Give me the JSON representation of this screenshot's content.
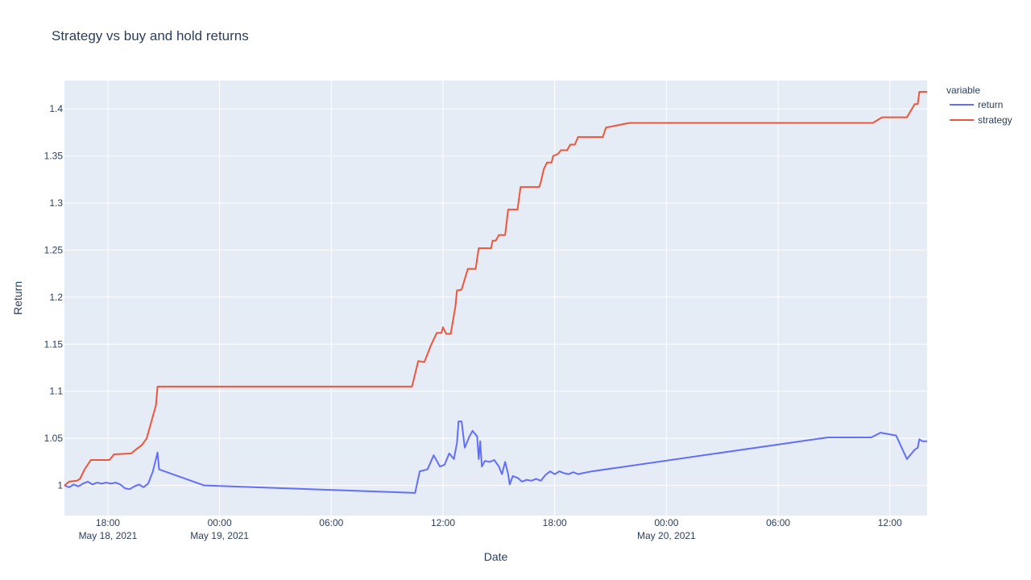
{
  "chart_data": {
    "type": "line",
    "title": "Strategy vs buy and hold returns",
    "xlabel": "Date",
    "ylabel": "Return",
    "xlim": [
      "2021-05-18T15:40:00",
      "2021-05-20T14:00:00"
    ],
    "ylim": [
      0.968,
      1.43
    ],
    "grid": true,
    "legend": {
      "title": "variable",
      "placement": "top-right"
    },
    "x_ticks": [
      {
        "value": "2021-05-18T18:00:00",
        "label": "18:00",
        "sublabel": "May 18, 2021"
      },
      {
        "value": "2021-05-19T00:00:00",
        "label": "00:00",
        "sublabel": "May 19, 2021"
      },
      {
        "value": "2021-05-19T06:00:00",
        "label": "06:00",
        "sublabel": ""
      },
      {
        "value": "2021-05-19T12:00:00",
        "label": "12:00",
        "sublabel": ""
      },
      {
        "value": "2021-05-19T18:00:00",
        "label": "18:00",
        "sublabel": ""
      },
      {
        "value": "2021-05-20T00:00:00",
        "label": "00:00",
        "sublabel": "May 20, 2021"
      },
      {
        "value": "2021-05-20T06:00:00",
        "label": "06:00",
        "sublabel": ""
      },
      {
        "value": "2021-05-20T12:00:00",
        "label": "12:00",
        "sublabel": ""
      }
    ],
    "y_ticks": [
      {
        "value": 1.0,
        "label": "1"
      },
      {
        "value": 1.05,
        "label": "1.05"
      },
      {
        "value": 1.1,
        "label": "1.1"
      },
      {
        "value": 1.15,
        "label": "1.15"
      },
      {
        "value": 1.2,
        "label": "1.2"
      },
      {
        "value": 1.25,
        "label": "1.25"
      },
      {
        "value": 1.3,
        "label": "1.3"
      },
      {
        "value": 1.35,
        "label": "1.35"
      },
      {
        "value": 1.4,
        "label": "1.4"
      }
    ],
    "series": [
      {
        "name": "return",
        "color": "#636efa",
        "points": [
          [
            "2021-05-18T15:40:00",
            1.0
          ],
          [
            "2021-05-18T15:55:00",
            0.998
          ],
          [
            "2021-05-18T16:10:00",
            1.001
          ],
          [
            "2021-05-18T16:25:00",
            0.999
          ],
          [
            "2021-05-18T16:40:00",
            1.002
          ],
          [
            "2021-05-18T16:55:00",
            1.004
          ],
          [
            "2021-05-18T17:10:00",
            1.001
          ],
          [
            "2021-05-18T17:25:00",
            1.003
          ],
          [
            "2021-05-18T17:40:00",
            1.002
          ],
          [
            "2021-05-18T17:55:00",
            1.003
          ],
          [
            "2021-05-18T18:10:00",
            1.002
          ],
          [
            "2021-05-18T18:25:00",
            1.003
          ],
          [
            "2021-05-18T18:40:00",
            1.001
          ],
          [
            "2021-05-18T18:55:00",
            0.997
          ],
          [
            "2021-05-18T19:10:00",
            0.996
          ],
          [
            "2021-05-18T19:25:00",
            0.999
          ],
          [
            "2021-05-18T19:40:00",
            1.001
          ],
          [
            "2021-05-18T19:55:00",
            0.998
          ],
          [
            "2021-05-18T20:10:00",
            1.002
          ],
          [
            "2021-05-18T20:25:00",
            1.015
          ],
          [
            "2021-05-18T20:40:00",
            1.035
          ],
          [
            "2021-05-18T20:45:00",
            1.017
          ],
          [
            "2021-05-18T23:10:00",
            1.0
          ],
          [
            "2021-05-19T10:30:00",
            0.992
          ],
          [
            "2021-05-19T10:45:00",
            1.015
          ],
          [
            "2021-05-19T11:10:00",
            1.017
          ],
          [
            "2021-05-19T11:30:00",
            1.032
          ],
          [
            "2021-05-19T11:50:00",
            1.02
          ],
          [
            "2021-05-19T12:05:00",
            1.022
          ],
          [
            "2021-05-19T12:20:00",
            1.034
          ],
          [
            "2021-05-19T12:35:00",
            1.028
          ],
          [
            "2021-05-19T12:45:00",
            1.045
          ],
          [
            "2021-05-19T12:50:00",
            1.068
          ],
          [
            "2021-05-19T13:00:00",
            1.068
          ],
          [
            "2021-05-19T13:10:00",
            1.04
          ],
          [
            "2021-05-19T13:25:00",
            1.052
          ],
          [
            "2021-05-19T13:35:00",
            1.058
          ],
          [
            "2021-05-19T13:50:00",
            1.052
          ],
          [
            "2021-05-19T13:55:00",
            1.028
          ],
          [
            "2021-05-19T14:00:00",
            1.047
          ],
          [
            "2021-05-19T14:05:00",
            1.02
          ],
          [
            "2021-05-19T14:15:00",
            1.026
          ],
          [
            "2021-05-19T14:30:00",
            1.025
          ],
          [
            "2021-05-19T14:45:00",
            1.027
          ],
          [
            "2021-05-19T15:00:00",
            1.02
          ],
          [
            "2021-05-19T15:10:00",
            1.012
          ],
          [
            "2021-05-19T15:20:00",
            1.025
          ],
          [
            "2021-05-19T15:30:00",
            1.012
          ],
          [
            "2021-05-19T15:35:00",
            1.001
          ],
          [
            "2021-05-19T15:45:00",
            1.01
          ],
          [
            "2021-05-19T16:00:00",
            1.008
          ],
          [
            "2021-05-19T16:15:00",
            1.004
          ],
          [
            "2021-05-19T16:30:00",
            1.006
          ],
          [
            "2021-05-19T16:45:00",
            1.005
          ],
          [
            "2021-05-19T17:00:00",
            1.007
          ],
          [
            "2021-05-19T17:15:00",
            1.005
          ],
          [
            "2021-05-19T17:30:00",
            1.011
          ],
          [
            "2021-05-19T17:45:00",
            1.015
          ],
          [
            "2021-05-19T18:00:00",
            1.012
          ],
          [
            "2021-05-19T18:15:00",
            1.015
          ],
          [
            "2021-05-19T18:30:00",
            1.013
          ],
          [
            "2021-05-19T18:45:00",
            1.012
          ],
          [
            "2021-05-19T19:00:00",
            1.014
          ],
          [
            "2021-05-19T19:15:00",
            1.012
          ],
          [
            "2021-05-19T19:30:00",
            1.013
          ],
          [
            "2021-05-19T19:45:00",
            1.014
          ],
          [
            "2021-05-19T20:00:00",
            1.015
          ],
          [
            "2021-05-20T08:40:00",
            1.051
          ],
          [
            "2021-05-20T11:00:00",
            1.051
          ],
          [
            "2021-05-20T11:30:00",
            1.056
          ],
          [
            "2021-05-20T12:20:00",
            1.053
          ],
          [
            "2021-05-20T12:55:00",
            1.028
          ],
          [
            "2021-05-20T13:20:00",
            1.038
          ],
          [
            "2021-05-20T13:30:00",
            1.04
          ],
          [
            "2021-05-20T13:35:00",
            1.049
          ],
          [
            "2021-05-20T13:45:00",
            1.047
          ],
          [
            "2021-05-20T14:00:00",
            1.047
          ]
        ]
      },
      {
        "name": "strategy",
        "color": "#ef553b",
        "points": [
          [
            "2021-05-18T15:40:00",
            1.0
          ],
          [
            "2021-05-18T15:55:00",
            1.004
          ],
          [
            "2021-05-18T16:20:00",
            1.005
          ],
          [
            "2021-05-18T16:30:00",
            1.007
          ],
          [
            "2021-05-18T16:45:00",
            1.017
          ],
          [
            "2021-05-18T16:55:00",
            1.022
          ],
          [
            "2021-05-18T17:05:00",
            1.027
          ],
          [
            "2021-05-18T18:05:00",
            1.027
          ],
          [
            "2021-05-18T18:20:00",
            1.033
          ],
          [
            "2021-05-18T19:15:00",
            1.034
          ],
          [
            "2021-05-18T19:30:00",
            1.038
          ],
          [
            "2021-05-18T19:50:00",
            1.043
          ],
          [
            "2021-05-18T20:05:00",
            1.05
          ],
          [
            "2021-05-18T20:35:00",
            1.085
          ],
          [
            "2021-05-18T20:40:00",
            1.105
          ],
          [
            "2021-05-19T10:20:00",
            1.105
          ],
          [
            "2021-05-19T10:40:00",
            1.132
          ],
          [
            "2021-05-19T11:00:00",
            1.131
          ],
          [
            "2021-05-19T11:20:00",
            1.148
          ],
          [
            "2021-05-19T11:40:00",
            1.162
          ],
          [
            "2021-05-19T11:55:00",
            1.162
          ],
          [
            "2021-05-19T12:00:00",
            1.168
          ],
          [
            "2021-05-19T12:10:00",
            1.161
          ],
          [
            "2021-05-19T12:25:00",
            1.161
          ],
          [
            "2021-05-19T12:40:00",
            1.19
          ],
          [
            "2021-05-19T12:45:00",
            1.207
          ],
          [
            "2021-05-19T13:00:00",
            1.208
          ],
          [
            "2021-05-19T13:20:00",
            1.23
          ],
          [
            "2021-05-19T13:45:00",
            1.23
          ],
          [
            "2021-05-19T13:55:00",
            1.252
          ],
          [
            "2021-05-19T14:35:00",
            1.252
          ],
          [
            "2021-05-19T14:40:00",
            1.26
          ],
          [
            "2021-05-19T14:50:00",
            1.26
          ],
          [
            "2021-05-19T15:00:00",
            1.266
          ],
          [
            "2021-05-19T15:20:00",
            1.266
          ],
          [
            "2021-05-19T15:30:00",
            1.293
          ],
          [
            "2021-05-19T16:00:00",
            1.293
          ],
          [
            "2021-05-19T16:10:00",
            1.317
          ],
          [
            "2021-05-19T17:10:00",
            1.317
          ],
          [
            "2021-05-19T17:15:00",
            1.322
          ],
          [
            "2021-05-19T17:25:00",
            1.336
          ],
          [
            "2021-05-19T17:35:00",
            1.343
          ],
          [
            "2021-05-19T17:50:00",
            1.343
          ],
          [
            "2021-05-19T17:55:00",
            1.35
          ],
          [
            "2021-05-19T18:10:00",
            1.352
          ],
          [
            "2021-05-19T18:20:00",
            1.356
          ],
          [
            "2021-05-19T18:40:00",
            1.356
          ],
          [
            "2021-05-19T18:50:00",
            1.362
          ],
          [
            "2021-05-19T19:05:00",
            1.362
          ],
          [
            "2021-05-19T19:15:00",
            1.37
          ],
          [
            "2021-05-19T20:35:00",
            1.37
          ],
          [
            "2021-05-19T20:45:00",
            1.38
          ],
          [
            "2021-05-19T22:00:00",
            1.385
          ],
          [
            "2021-05-20T11:05:00",
            1.385
          ],
          [
            "2021-05-20T11:35:00",
            1.391
          ],
          [
            "2021-05-20T12:55:00",
            1.391
          ],
          [
            "2021-05-20T13:20:00",
            1.405
          ],
          [
            "2021-05-20T13:30:00",
            1.405
          ],
          [
            "2021-05-20T13:35:00",
            1.418
          ],
          [
            "2021-05-20T14:00:00",
            1.418
          ]
        ]
      }
    ]
  }
}
